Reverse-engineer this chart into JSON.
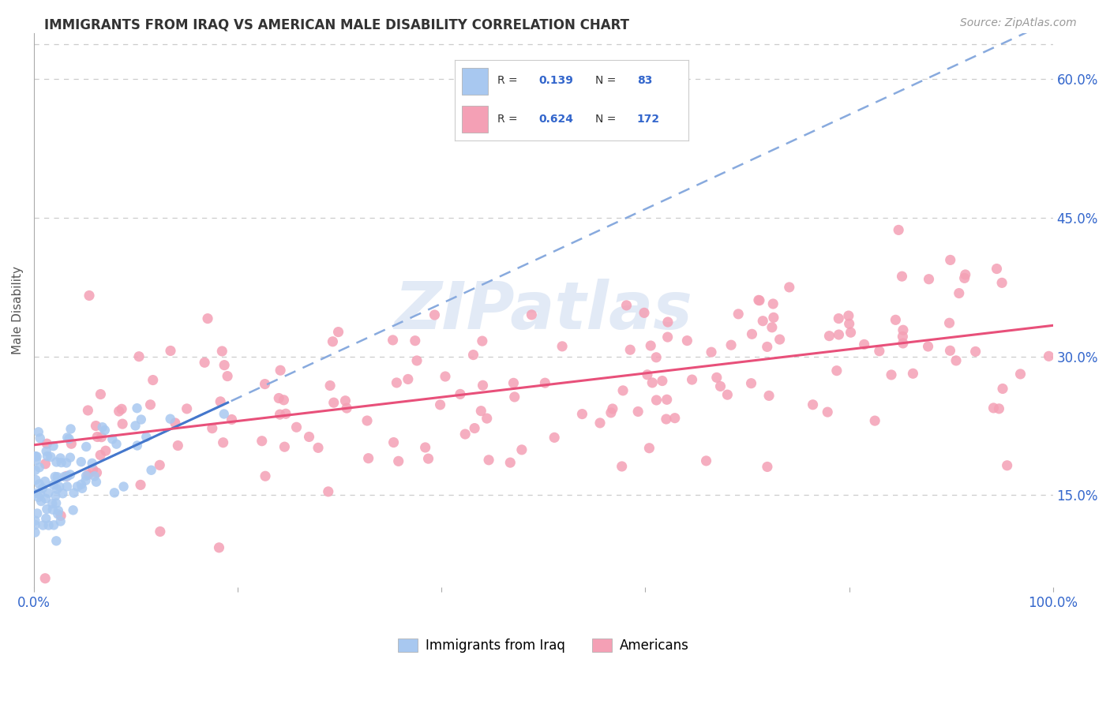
{
  "title": "IMMIGRANTS FROM IRAQ VS AMERICAN MALE DISABILITY CORRELATION CHART",
  "source": "Source: ZipAtlas.com",
  "ylabel": "Male Disability",
  "xlim": [
    0,
    1.0
  ],
  "ylim": [
    0.05,
    0.65
  ],
  "y_ticks": [
    0.15,
    0.3,
    0.45,
    0.6
  ],
  "y_tick_labels": [
    "15.0%",
    "30.0%",
    "45.0%",
    "60.0%"
  ],
  "R_iraq": 0.139,
  "N_iraq": 83,
  "R_americans": 0.624,
  "N_americans": 172,
  "iraq_color": "#a8c8f0",
  "americans_color": "#f4a0b5",
  "iraq_line_color": "#4477cc",
  "americans_line_color": "#e8507a",
  "dashed_line_color": "#88aade",
  "legend_label_iraq": "Immigrants from Iraq",
  "legend_label_americans": "Americans",
  "grid_color": "#cccccc",
  "watermark_color": "#d0ddf0"
}
